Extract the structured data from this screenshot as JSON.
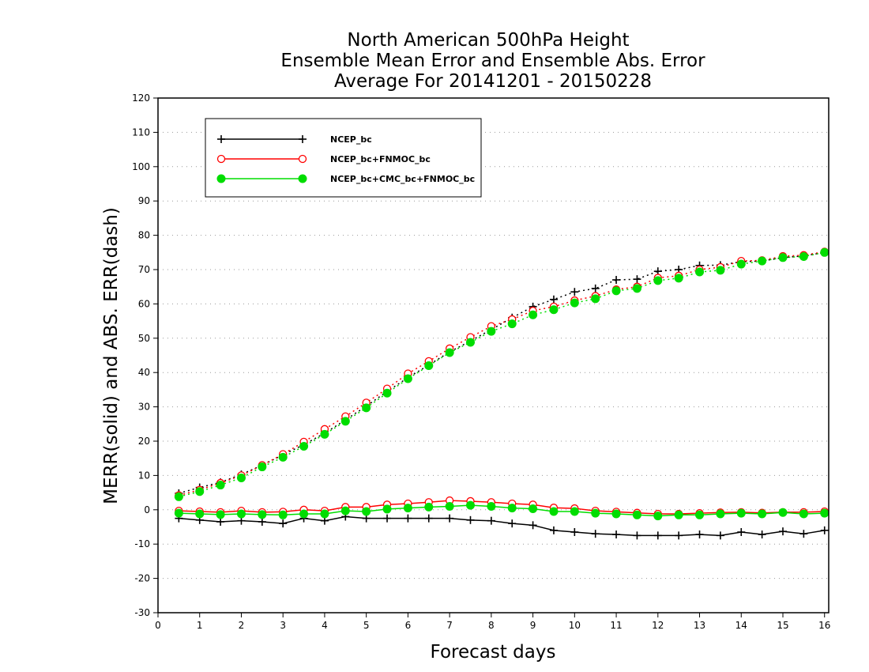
{
  "chart_data": {
    "type": "line",
    "title": [
      "North American 500hPa Height",
      "Ensemble Mean Error and Ensemble Abs. Error",
      "Average For 20141201 - 20150228"
    ],
    "xlabel": "Forecast days",
    "ylabel": "MERR(solid) and ABS. ERR(dash)",
    "xlim": [
      0,
      16.1
    ],
    "ylim": [
      -30,
      120
    ],
    "xticks": [
      "0",
      "1",
      "2",
      "3",
      "4",
      "5",
      "6",
      "7",
      "8",
      "9",
      "10",
      "11",
      "12",
      "13",
      "14",
      "15",
      "16"
    ],
    "yticks": [
      "-30",
      "-20",
      "-10",
      "0",
      "10",
      "20",
      "30",
      "40",
      "50",
      "60",
      "70",
      "80",
      "90",
      "100",
      "110",
      "120"
    ],
    "grid": true,
    "legend_position": "top-left",
    "x": [
      0.5,
      1,
      1.5,
      2,
      2.5,
      3,
      3.5,
      4,
      4.5,
      5,
      5.5,
      6,
      6.5,
      7,
      7.5,
      8,
      8.5,
      9,
      9.5,
      10,
      10.5,
      11,
      11.5,
      12,
      12.5,
      13,
      13.5,
      14,
      14.5,
      15,
      15.5,
      16
    ],
    "series": [
      {
        "name": "NCEP_bc",
        "color": "#000000",
        "marker": "plus",
        "merr": [
          -2.5,
          -3,
          -3.5,
          -3.2,
          -3.5,
          -4,
          -2.5,
          -3.2,
          -2,
          -2.5,
          -2.5,
          -2.5,
          -2.5,
          -2.5,
          -3,
          -3.2,
          -4,
          -4.5,
          -6,
          -6.5,
          -7,
          -7.2,
          -7.5,
          -7.5,
          -7.5,
          -7.2,
          -7.5,
          -6.5,
          -7.2,
          -6.3,
          -7,
          -6
        ],
        "abs_err": [
          4.8,
          6.5,
          8,
          10.3,
          13,
          16,
          19,
          22.3,
          26.2,
          30.2,
          34.5,
          38.5,
          42.2,
          46,
          49.2,
          52.5,
          56,
          59.2,
          61.3,
          63.5,
          64.5,
          67,
          67.2,
          69.5,
          70,
          71.2,
          71.3,
          72.3,
          72.5,
          73.5,
          74,
          75
        ]
      },
      {
        "name": "NCEP_bc+FNMOC_bc",
        "color": "#ff0000",
        "marker": "open-circle",
        "merr": [
          -0.3,
          -0.5,
          -0.7,
          -0.3,
          -0.7,
          -0.6,
          0,
          -0.3,
          0.8,
          0.8,
          1.5,
          1.8,
          2.2,
          2.7,
          2.5,
          2.2,
          1.8,
          1.5,
          0.6,
          0.4,
          -0.3,
          -0.6,
          -0.9,
          -1.2,
          -1.2,
          -1,
          -0.8,
          -0.7,
          -0.9,
          -0.7,
          -0.7,
          -0.5
        ],
        "abs_err": [
          4.2,
          5.8,
          7.8,
          10,
          13,
          16.2,
          19.8,
          23.5,
          27.2,
          31.2,
          35.3,
          39.7,
          43.3,
          47,
          50.3,
          53.5,
          55.5,
          58,
          59.2,
          61,
          62.3,
          64.2,
          65,
          67.6,
          68.2,
          70,
          70.7,
          72.5,
          72.7,
          73.9,
          74.2,
          75.2
        ]
      },
      {
        "name": "NCEP_bc+CMC_bc+FNMOC_bc",
        "color": "#00dd00",
        "marker": "filled-circle",
        "merr": [
          -1,
          -1.2,
          -1.4,
          -1.2,
          -1.4,
          -1.5,
          -1.2,
          -1.2,
          -0.3,
          -0.5,
          0.2,
          0.5,
          0.8,
          1,
          1.3,
          1,
          0.5,
          0.3,
          -0.5,
          -0.5,
          -1,
          -1.2,
          -1.5,
          -1.8,
          -1.5,
          -1.5,
          -1.2,
          -1,
          -1.2,
          -0.8,
          -1.2,
          -1
        ],
        "abs_err": [
          3.8,
          5.3,
          7.2,
          9.3,
          12.5,
          15.3,
          18.5,
          22,
          25.8,
          29.7,
          34,
          38.2,
          42,
          45.8,
          48.8,
          52,
          54.2,
          56.8,
          58.3,
          60.3,
          61.5,
          63.8,
          64.5,
          66.8,
          67.5,
          69.3,
          69.8,
          71.6,
          72.5,
          73.5,
          73.8,
          75
        ]
      }
    ]
  }
}
